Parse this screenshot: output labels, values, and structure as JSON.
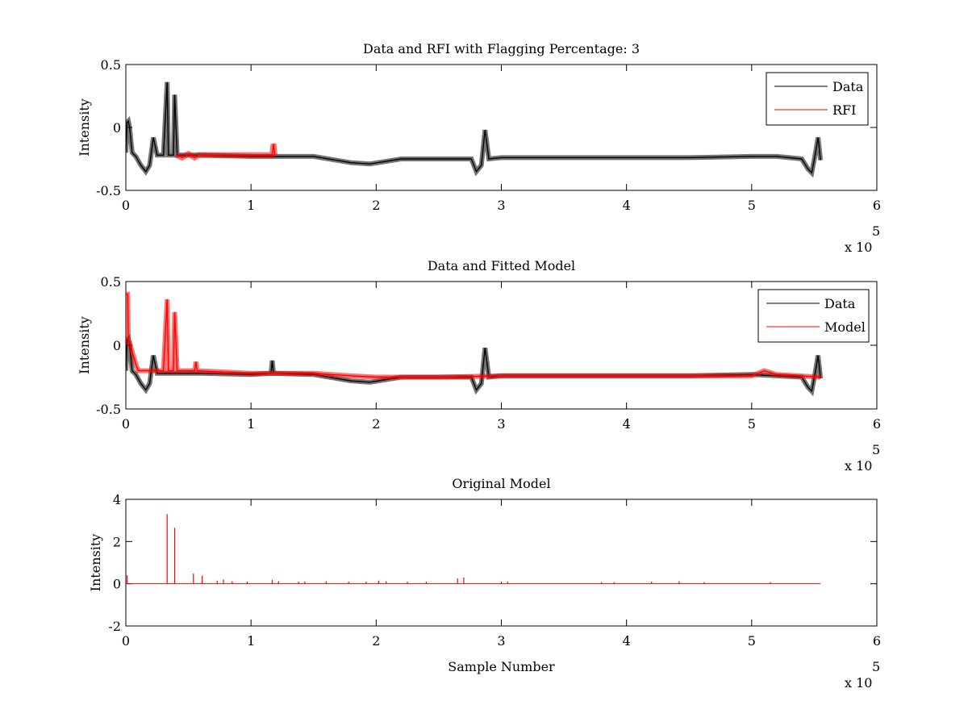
{
  "chart_data": [
    {
      "type": "line",
      "title": "Data and RFI with Flagging Percentage: 3",
      "xlabel": "",
      "ylabel": "Intensity",
      "xlim": [
        0,
        600000
      ],
      "ylim": [
        -0.5,
        0.5
      ],
      "x_ticks": [
        "0",
        "1",
        "2",
        "3",
        "4",
        "5",
        "6"
      ],
      "y_ticks": [
        "-0.5",
        "0",
        "0.5"
      ],
      "x_exponent": "x 10",
      "x_exponent_power": "5",
      "legend": {
        "position": "top-right",
        "entries": [
          "Data",
          "RFI"
        ]
      },
      "grid": false,
      "series": [
        {
          "name": "Data",
          "color": "#000000",
          "x": [
            0,
            1000,
            2000,
            3000,
            5000,
            8000,
            12000,
            16000,
            19000,
            22000,
            25000,
            30000,
            33000,
            34000,
            36000,
            38000,
            39000,
            41000,
            60000,
            100000,
            150000,
            180000,
            195000,
            220000,
            260000,
            276000,
            280000,
            284000,
            287000,
            290000,
            300000,
            350000,
            400000,
            450000,
            500000,
            520000,
            530000,
            540000,
            545000,
            548000,
            551000,
            553000,
            555000
          ],
          "y": [
            -0.2,
            0.04,
            0.05,
            0.0,
            -0.2,
            -0.23,
            -0.3,
            -0.35,
            -0.3,
            -0.08,
            -0.22,
            -0.22,
            0.36,
            -0.22,
            -0.22,
            -0.22,
            0.26,
            -0.22,
            -0.22,
            -0.23,
            -0.23,
            -0.28,
            -0.29,
            -0.25,
            -0.25,
            -0.25,
            -0.35,
            -0.3,
            -0.02,
            -0.25,
            -0.24,
            -0.24,
            -0.24,
            -0.24,
            -0.23,
            -0.23,
            -0.24,
            -0.25,
            -0.33,
            -0.36,
            -0.2,
            -0.08,
            -0.26
          ]
        },
        {
          "name": "RFI",
          "color": "#ff0000",
          "x": [
            40000,
            45000,
            50000,
            55000,
            58000,
            117000,
            118000,
            119000
          ],
          "y": [
            -0.22,
            -0.24,
            -0.21,
            -0.24,
            -0.22,
            -0.22,
            -0.13,
            -0.22
          ]
        }
      ]
    },
    {
      "type": "line",
      "title": "Data and Fitted Model",
      "xlabel": "",
      "ylabel": "Intensity",
      "xlim": [
        0,
        600000
      ],
      "ylim": [
        -0.5,
        0.5
      ],
      "x_ticks": [
        "0",
        "1",
        "2",
        "3",
        "4",
        "5",
        "6"
      ],
      "y_ticks": [
        "-0.5",
        "0",
        "0.5"
      ],
      "x_exponent": "x 10",
      "x_exponent_power": "5",
      "legend": {
        "position": "top-right",
        "entries": [
          "Data",
          "Model"
        ]
      },
      "grid": false,
      "series": [
        {
          "name": "Data",
          "color": "#000000",
          "x": [
            0,
            1000,
            2000,
            3000,
            5000,
            8000,
            12000,
            16000,
            19000,
            22000,
            25000,
            60000,
            100000,
            116000,
            117000,
            118000,
            150000,
            180000,
            195000,
            220000,
            260000,
            276000,
            280000,
            284000,
            287000,
            290000,
            300000,
            350000,
            400000,
            450000,
            500000,
            540000,
            545000,
            548000,
            551000,
            553000,
            555000
          ],
          "y": [
            -0.2,
            0.04,
            0.05,
            0.0,
            -0.2,
            -0.23,
            -0.3,
            -0.35,
            -0.3,
            -0.08,
            -0.22,
            -0.22,
            -0.23,
            -0.22,
            -0.12,
            -0.22,
            -0.23,
            -0.28,
            -0.29,
            -0.25,
            -0.25,
            -0.25,
            -0.35,
            -0.3,
            -0.02,
            -0.25,
            -0.24,
            -0.24,
            -0.24,
            -0.24,
            -0.23,
            -0.25,
            -0.33,
            -0.36,
            -0.2,
            -0.08,
            -0.26
          ]
        },
        {
          "name": "Model",
          "color": "#ff0000",
          "x": [
            0,
            1000,
            1500,
            2000,
            3000,
            5000,
            8000,
            10000,
            30000,
            33000,
            34000,
            36000,
            38000,
            39000,
            41000,
            55000,
            56000,
            57000,
            100000,
            150000,
            180000,
            200000,
            250000,
            300000,
            350000,
            400000,
            450000,
            500000,
            510000,
            520000,
            555000
          ],
          "y": [
            0.4,
            0.4,
            0.4,
            0.02,
            0.02,
            -0.05,
            -0.15,
            -0.2,
            -0.2,
            0.36,
            -0.2,
            -0.2,
            -0.2,
            0.26,
            -0.2,
            -0.2,
            -0.13,
            -0.2,
            -0.22,
            -0.22,
            -0.24,
            -0.25,
            -0.25,
            -0.24,
            -0.24,
            -0.24,
            -0.24,
            -0.24,
            -0.2,
            -0.23,
            -0.25
          ]
        }
      ]
    },
    {
      "type": "line",
      "title": "Original Model",
      "xlabel": "Sample Number",
      "ylabel": "Intensity",
      "xlim": [
        0,
        600000
      ],
      "ylim": [
        -2,
        4
      ],
      "x_ticks": [
        "0",
        "1",
        "2",
        "3",
        "4",
        "5",
        "6"
      ],
      "y_ticks": [
        "-2",
        "0",
        "2",
        "4"
      ],
      "x_exponent": "x 10",
      "x_exponent_power": "5",
      "grid": false,
      "series": [
        {
          "color": "#ff0000",
          "baseline": 0,
          "xmax": 555000,
          "spikes_x": [
            1000,
            33000,
            39000,
            54000,
            61000,
            73000,
            78000,
            85000,
            97000,
            117000,
            122000,
            138000,
            143000,
            160000,
            178000,
            192000,
            202000,
            208000,
            225000,
            240000,
            265000,
            270000,
            300000,
            305000,
            380000,
            390000,
            420000,
            442000,
            462000,
            515000
          ],
          "spikes_y": [
            0.4,
            3.3,
            2.65,
            0.48,
            0.38,
            0.15,
            0.2,
            0.12,
            0.1,
            0.18,
            0.12,
            0.1,
            0.1,
            0.12,
            0.1,
            0.1,
            0.15,
            0.12,
            0.1,
            0.1,
            0.25,
            0.3,
            0.1,
            0.1,
            0.08,
            0.08,
            0.1,
            0.12,
            0.08,
            0.08
          ]
        }
      ]
    }
  ]
}
